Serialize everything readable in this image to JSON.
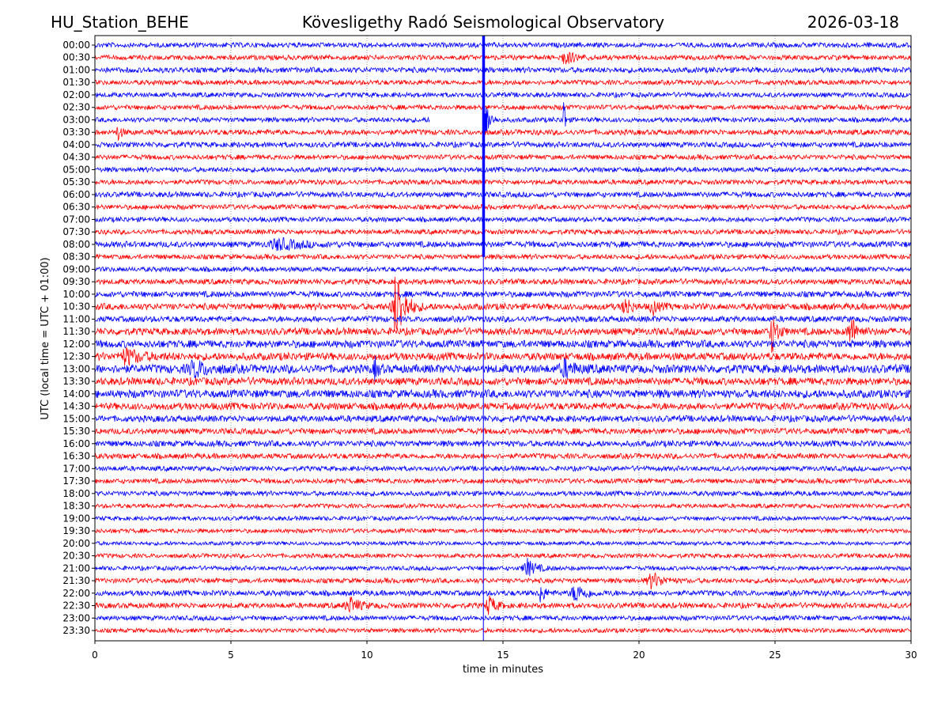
{
  "header": {
    "station": "HU_Station_BEHE",
    "observatory": "Kövesligethy Radó Seismological Observatory",
    "date": "2026-03-18"
  },
  "chart_data": {
    "type": "line",
    "subtype": "helicorder",
    "title": "Kövesligethy Radó Seismological Observatory",
    "xlabel": "time in minutes",
    "ylabel": "UTC (local time = UTC + 01:00)",
    "xlim": [
      0,
      30
    ],
    "xticks": [
      "0",
      "5",
      "10",
      "15",
      "20",
      "25",
      "30"
    ],
    "xtick_values": [
      0,
      5,
      10,
      15,
      20,
      25,
      30
    ],
    "grid": "vertical dotted at each x tick",
    "colors": [
      "#0000ff",
      "#ff0000"
    ],
    "rows": [
      "00:00",
      "00:30",
      "01:00",
      "01:30",
      "02:00",
      "02:30",
      "03:00",
      "03:30",
      "04:00",
      "04:30",
      "05:00",
      "05:30",
      "06:00",
      "06:30",
      "07:00",
      "07:30",
      "08:00",
      "08:30",
      "09:00",
      "09:30",
      "10:00",
      "10:30",
      "11:00",
      "11:30",
      "12:00",
      "12:30",
      "13:00",
      "13:30",
      "14:00",
      "14:30",
      "15:00",
      "15:30",
      "16:00",
      "16:30",
      "17:00",
      "17:30",
      "18:00",
      "18:30",
      "19:00",
      "19:30",
      "20:00",
      "20:30",
      "21:00",
      "21:30",
      "22:00",
      "22:30",
      "23:00",
      "23:30"
    ],
    "noise_level": [
      0.18,
      0.18,
      0.2,
      0.18,
      0.18,
      0.18,
      0.18,
      0.2,
      0.2,
      0.18,
      0.18,
      0.18,
      0.2,
      0.18,
      0.18,
      0.18,
      0.22,
      0.18,
      0.18,
      0.2,
      0.22,
      0.24,
      0.22,
      0.26,
      0.28,
      0.28,
      0.32,
      0.28,
      0.3,
      0.26,
      0.24,
      0.22,
      0.22,
      0.2,
      0.18,
      0.18,
      0.18,
      0.16,
      0.16,
      0.16,
      0.14,
      0.16,
      0.16,
      0.18,
      0.2,
      0.2,
      0.18,
      0.16
    ],
    "gaps": [
      {
        "row": "03:00",
        "from": 12.3,
        "to": 14.35
      }
    ],
    "events": [
      {
        "row": "00:00",
        "minute": 14.28,
        "amplitude": 18,
        "duration": 0.08
      },
      {
        "row": "03:00",
        "minute": 14.35,
        "amplitude": 2.0,
        "duration": 0.12
      },
      {
        "row": "03:00",
        "minute": 17.22,
        "amplitude": 2.4,
        "duration": 0.05
      },
      {
        "row": "00:30",
        "minute": 17.3,
        "amplitude": 0.5,
        "duration": 0.3
      },
      {
        "row": "03:30",
        "minute": 0.85,
        "amplitude": 0.6,
        "duration": 0.1
      },
      {
        "row": "08:00",
        "minute": 6.8,
        "amplitude": 0.4,
        "duration": 0.6
      },
      {
        "row": "10:30",
        "minute": 11.1,
        "amplitude": 2.8,
        "duration": 0.25
      },
      {
        "row": "10:30",
        "minute": 19.5,
        "amplitude": 0.9,
        "duration": 0.15
      },
      {
        "row": "10:30",
        "minute": 20.5,
        "amplitude": 0.6,
        "duration": 0.15
      },
      {
        "row": "11:30",
        "minute": 24.9,
        "amplitude": 1.6,
        "duration": 0.15
      },
      {
        "row": "11:30",
        "minute": 27.8,
        "amplitude": 1.1,
        "duration": 0.2
      },
      {
        "row": "12:30",
        "minute": 1.2,
        "amplitude": 0.6,
        "duration": 0.4
      },
      {
        "row": "13:00",
        "minute": 3.7,
        "amplitude": 0.6,
        "duration": 0.4
      },
      {
        "row": "13:00",
        "minute": 10.3,
        "amplitude": 0.8,
        "duration": 0.1
      },
      {
        "row": "13:00",
        "minute": 17.3,
        "amplitude": 0.6,
        "duration": 0.3
      },
      {
        "row": "21:00",
        "minute": 15.9,
        "amplitude": 0.7,
        "duration": 0.25
      },
      {
        "row": "21:30",
        "minute": 20.5,
        "amplitude": 0.6,
        "duration": 0.3
      },
      {
        "row": "22:00",
        "minute": 16.4,
        "amplitude": 0.9,
        "duration": 0.1
      },
      {
        "row": "22:00",
        "minute": 17.7,
        "amplitude": 0.7,
        "duration": 0.3
      },
      {
        "row": "22:30",
        "minute": 9.4,
        "amplitude": 0.6,
        "duration": 0.3
      },
      {
        "row": "22:30",
        "minute": 14.5,
        "amplitude": 0.7,
        "duration": 0.2
      }
    ]
  }
}
